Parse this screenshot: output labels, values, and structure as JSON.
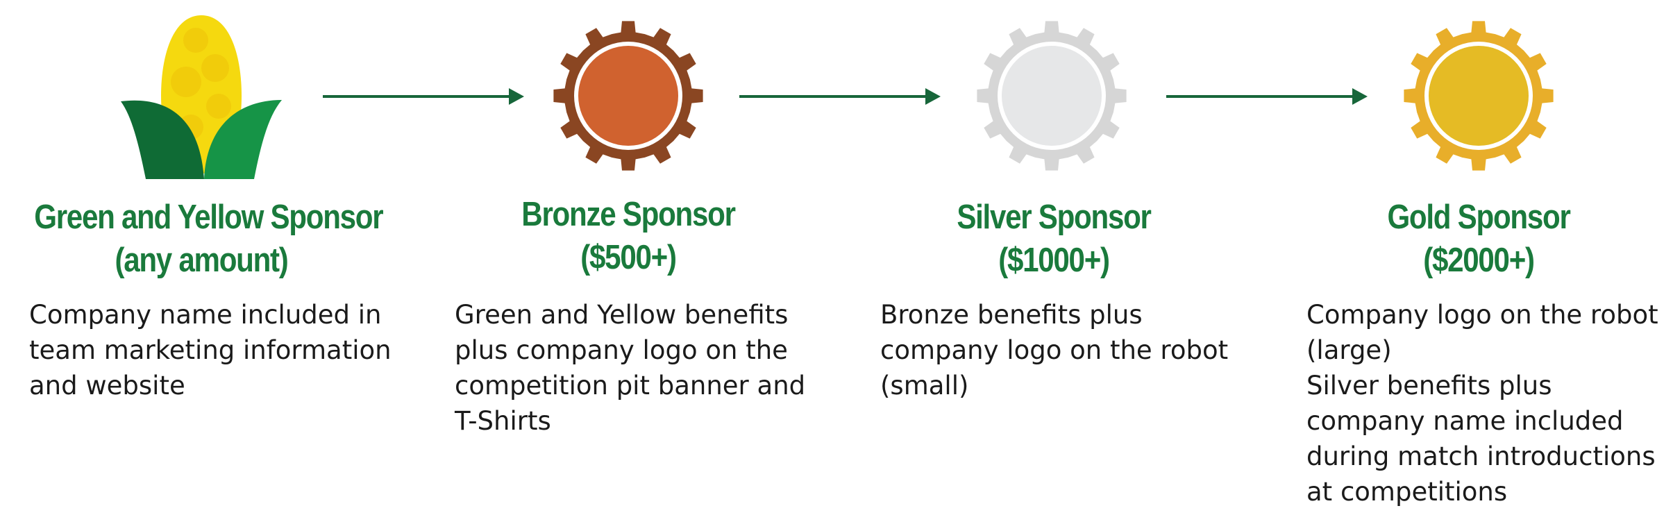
{
  "colors": {
    "title_green": "#1a7a3c",
    "arrow_green": "#17663a",
    "bronze": "#d0622f",
    "bronze_gear": "#8a4622",
    "silver": "#e6e7e8",
    "silver_gear": "#d6d6d6",
    "gold": "#e5bb25",
    "gold_gear": "#e8ae2a",
    "corn_yellow": "#f5d90f",
    "leaf_dark": "#0f6b35",
    "leaf_light": "#169447"
  },
  "tiers": [
    {
      "icon": "corn-icon",
      "title_line1": "Green and Yellow Sponsor",
      "title_line2": "(any amount)",
      "desc": [
        "Company name included in",
        "team marketing information",
        "and website"
      ]
    },
    {
      "icon": "bronze-gear-icon",
      "title_line1": "Bronze Sponsor",
      "title_line2": "($500+)",
      "desc": [
        "Green and Yellow benefits",
        "plus company logo on the",
        "competition pit banner and",
        "T-Shirts"
      ]
    },
    {
      "icon": "silver-gear-icon",
      "title_line1": "Silver Sponsor",
      "title_line2": "($1000+)",
      "desc": [
        "Bronze benefits plus",
        "company logo on the robot",
        "(small)"
      ]
    },
    {
      "icon": "gold-gear-icon",
      "title_line1": "Gold Sponsor",
      "title_line2": "($2000+)",
      "desc": [
        "Company logo on the robot",
        "(large)",
        "Silver benefits plus",
        "company name included",
        "during match introductions",
        "at competitions"
      ]
    }
  ],
  "arrows": [
    "arrow-right-icon",
    "arrow-right-icon",
    "arrow-right-icon"
  ]
}
